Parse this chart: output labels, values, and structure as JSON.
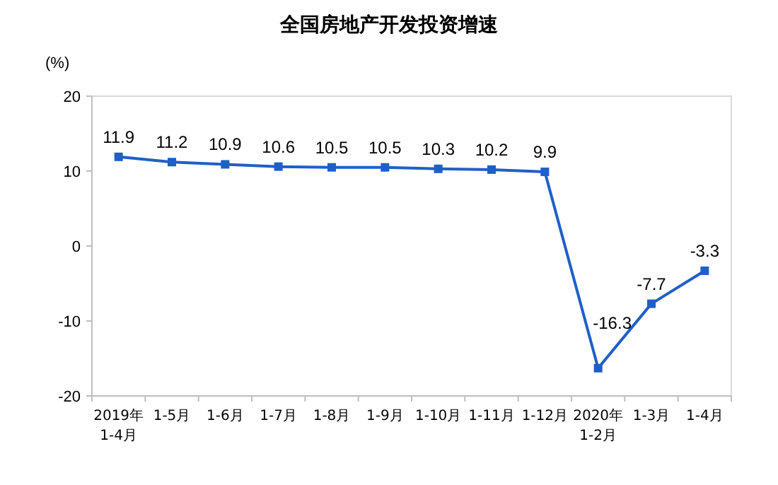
{
  "chart_data": {
    "type": "line",
    "title": "全国房地产开发投资增速",
    "ylabel": "(%)",
    "categories": [
      "2019年\n1-4月",
      "1-5月",
      "1-6月",
      "1-7月",
      "1-8月",
      "1-9月",
      "1-10月",
      "1-11月",
      "1-12月",
      "2020年\n1-2月",
      "1-3月",
      "1-4月"
    ],
    "series": [
      {
        "color": "#1f5fc8",
        "values": [
          11.9,
          11.2,
          10.9,
          10.6,
          10.5,
          10.5,
          10.3,
          10.2,
          9.9,
          -16.3,
          -7.7,
          -3.3
        ]
      }
    ],
    "ylim": [
      -20,
      20
    ],
    "yticks": [
      -20,
      -10,
      0,
      10,
      20
    ],
    "marker": "square",
    "line_style": "solid",
    "data_labels": true
  }
}
